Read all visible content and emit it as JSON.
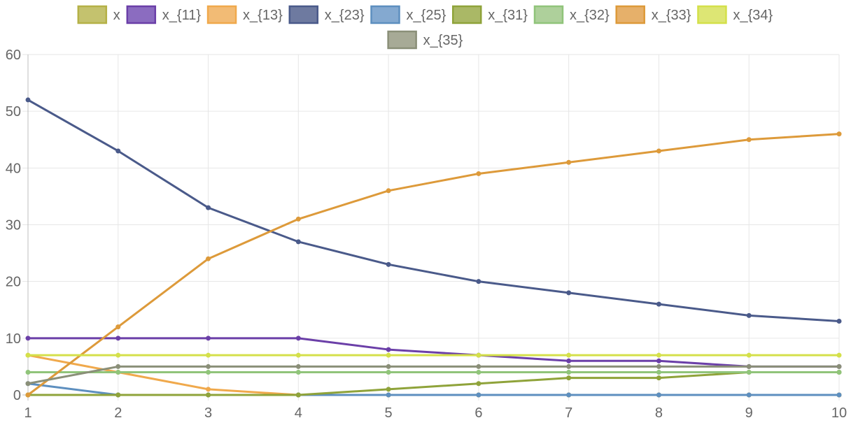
{
  "chart_data": {
    "type": "line",
    "x": [
      1,
      2,
      3,
      4,
      5,
      6,
      7,
      8,
      9,
      10
    ],
    "xlim": [
      1,
      10
    ],
    "ylim": [
      0,
      60
    ],
    "y_ticks": [
      0,
      10,
      20,
      30,
      40,
      50,
      60
    ],
    "x_ticks": [
      "1",
      "2",
      "3",
      "4",
      "5",
      "6",
      "7",
      "8",
      "9",
      "10"
    ],
    "grid": true,
    "legend_position": "top",
    "series": [
      {
        "name": "x",
        "color": "#b5b147",
        "fill": "#c4c26e",
        "values": [
          0,
          0,
          0,
          0,
          0,
          0,
          0,
          0,
          0,
          0
        ]
      },
      {
        "name": "x_{11}",
        "color": "#6b3fa8",
        "fill": "#8b6cc0",
        "values": [
          10,
          10,
          10,
          10,
          8,
          7,
          6,
          6,
          5,
          5
        ]
      },
      {
        "name": "x_{13}",
        "color": "#f0a94c",
        "fill": "#f2bb75",
        "values": [
          7,
          4,
          1,
          0,
          0,
          0,
          0,
          0,
          0,
          0
        ]
      },
      {
        "name": "x_{23}",
        "color": "#4a5a8a",
        "fill": "#6e7aa0",
        "values": [
          52,
          43,
          33,
          27,
          23,
          20,
          18,
          16,
          14,
          13
        ]
      },
      {
        "name": "x_{25}",
        "color": "#5d8fbf",
        "fill": "#84a9d0",
        "values": [
          2,
          0,
          0,
          0,
          0,
          0,
          0,
          0,
          0,
          0
        ]
      },
      {
        "name": "x_{31}",
        "color": "#8fa33a",
        "fill": "#aab866",
        "values": [
          0,
          0,
          0,
          0,
          1,
          2,
          3,
          3,
          4,
          4
        ]
      },
      {
        "name": "x_{32}",
        "color": "#90c47a",
        "fill": "#aed09b",
        "values": [
          4,
          4,
          4,
          4,
          4,
          4,
          4,
          4,
          4,
          4
        ]
      },
      {
        "name": "x_{33}",
        "color": "#dd9a3a",
        "fill": "#e6b06a",
        "values": [
          0,
          12,
          24,
          31,
          36,
          39,
          41,
          43,
          45,
          46
        ]
      },
      {
        "name": "x_{34}",
        "color": "#d4e04a",
        "fill": "#dde674",
        "values": [
          7,
          7,
          7,
          7,
          7,
          7,
          7,
          7,
          7,
          7
        ]
      },
      {
        "name": "x_{35}",
        "color": "#8a8f78",
        "fill": "#a7aa96",
        "values": [
          2,
          5,
          5,
          5,
          5,
          5,
          5,
          5,
          5,
          5
        ]
      }
    ]
  }
}
